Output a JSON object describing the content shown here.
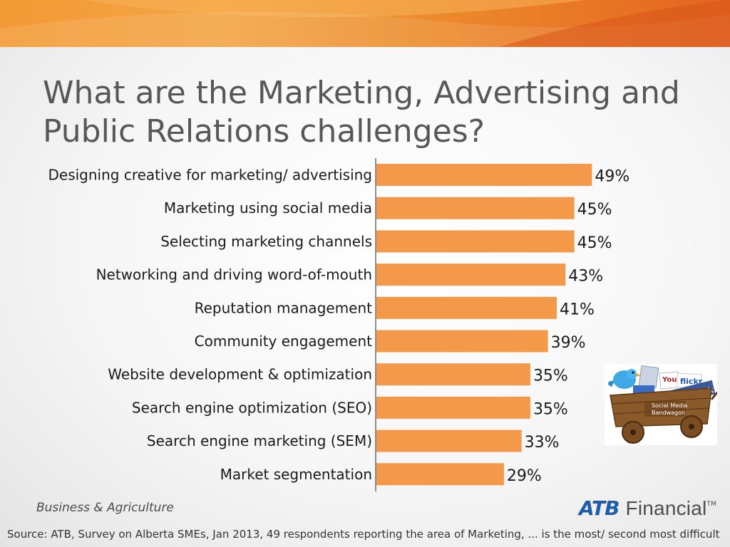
{
  "slide": {
    "title": "What are the Marketing, Advertising and Public Relations challenges?",
    "footer_left": "Business & Agriculture",
    "logo_atb": "ATB",
    "logo_financial": "Financial",
    "logo_tm": "TM",
    "source": "Source: ATB, Survey on Alberta SMEs, Jan 2013, 49 respondents reporting the area of Marketing, ... is the most/ second most difficult",
    "image_tags": [
      "You",
      "flickr",
      "facebook",
      "Social Media",
      "Bandwagon"
    ]
  },
  "colors": {
    "bar": "#f4994a",
    "banner": "#ef8a2d",
    "title": "#575757"
  },
  "chart_data": {
    "type": "bar",
    "orientation": "horizontal",
    "categories": [
      "Designing creative for marketing/ advertising",
      "Marketing using social media",
      "Selecting marketing channels",
      "Networking and driving word-of-mouth",
      "Reputation management",
      "Community engagement",
      "Website development & optimization",
      "Search engine optimization (SEO)",
      "Search engine marketing (SEM)",
      "Market segmentation"
    ],
    "values": [
      49,
      45,
      45,
      43,
      41,
      39,
      35,
      35,
      33,
      29
    ],
    "value_labels": [
      "49%",
      "45%",
      "45%",
      "43%",
      "41%",
      "39%",
      "35%",
      "35%",
      "33%",
      "29%"
    ],
    "value_unit": "%",
    "xlim": [
      0,
      100
    ],
    "grid": false,
    "legend": "none"
  }
}
